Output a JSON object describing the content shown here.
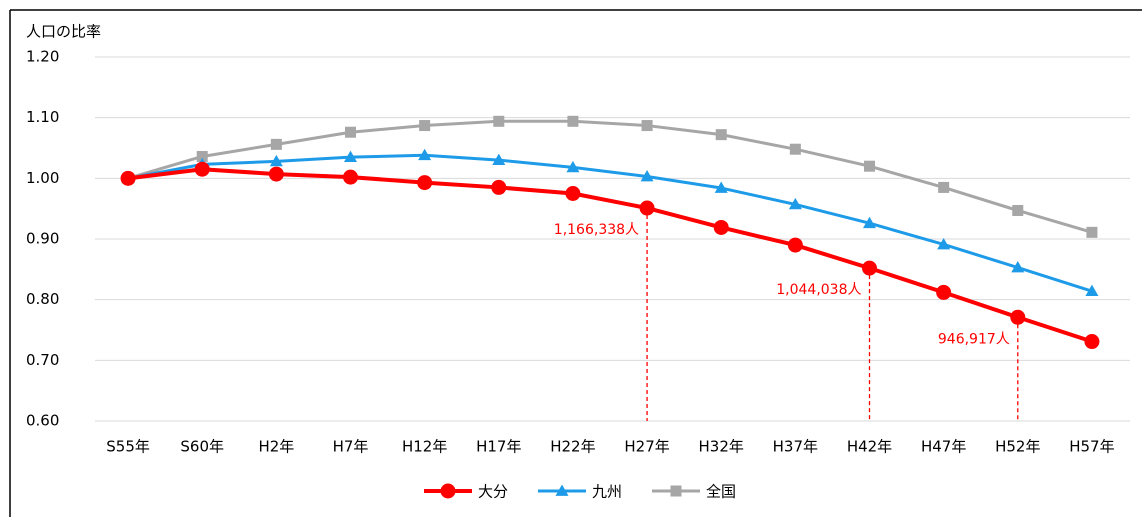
{
  "chart_data": {
    "type": "line",
    "y_label": "人口の比率",
    "categories": [
      "S55年",
      "S60年",
      "H2年",
      "H7年",
      "H12年",
      "H17年",
      "H22年",
      "H27年",
      "H32年",
      "H37年",
      "H42年",
      "H47年",
      "H52年",
      "H57年"
    ],
    "series": [
      {
        "name": "大分",
        "color": "#ff0000",
        "marker": "circle",
        "values": [
          1.0,
          1.015,
          1.007,
          1.002,
          0.993,
          0.985,
          0.975,
          0.951,
          0.919,
          0.89,
          0.852,
          0.812,
          0.771,
          0.731
        ]
      },
      {
        "name": "九州",
        "color": "#1e9be8",
        "marker": "triangle",
        "values": [
          1.0,
          1.023,
          1.028,
          1.035,
          1.038,
          1.03,
          1.018,
          1.003,
          0.984,
          0.957,
          0.926,
          0.891,
          0.853,
          0.814
        ]
      },
      {
        "name": "全国",
        "color": "#a6a6a6",
        "marker": "square",
        "values": [
          1.0,
          1.036,
          1.056,
          1.076,
          1.087,
          1.094,
          1.094,
          1.087,
          1.072,
          1.048,
          1.02,
          0.985,
          0.947,
          0.911
        ]
      }
    ],
    "ylim": [
      0.6,
      1.2
    ],
    "yticks": [
      {
        "value": 0.6,
        "label": "0.60"
      },
      {
        "value": 0.7,
        "label": "0.70"
      },
      {
        "value": 0.8,
        "label": "0.80"
      },
      {
        "value": 0.9,
        "label": "0.90"
      },
      {
        "value": 1.0,
        "label": "1.00"
      },
      {
        "value": 1.1,
        "label": "1.10"
      },
      {
        "value": 1.2,
        "label": "1.20"
      }
    ],
    "grid": true,
    "legend": "bottom",
    "annotations": [
      {
        "text": "1,166,338人",
        "x": "H27年"
      },
      {
        "text": "1,044,038人",
        "x": "H42年"
      },
      {
        "text": "946,917人",
        "x": "H52年"
      }
    ]
  }
}
